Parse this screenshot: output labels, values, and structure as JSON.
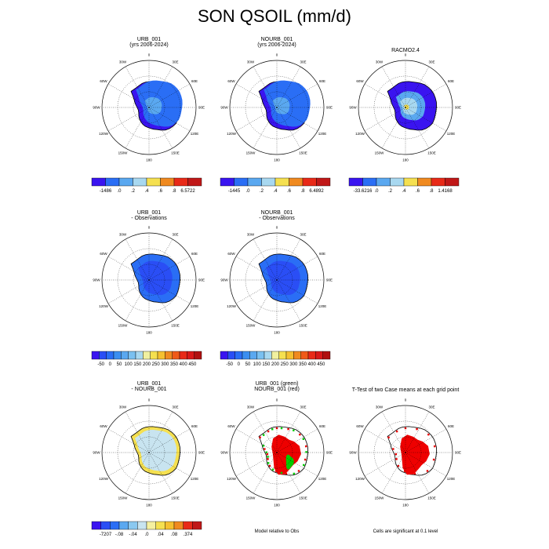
{
  "title": "SON QSOIL (mm/d)",
  "lon_labels": [
    "0",
    "30E",
    "60E",
    "90E",
    "120E",
    "150E",
    "180",
    "150W",
    "120W",
    "90W",
    "60W",
    "30W"
  ],
  "colors": {
    "ocean": "#ffffff",
    "coast": "#000000",
    "sig_urb": "#00cc00",
    "sig_nourb": "#ee0000",
    "scale_abs": [
      "#3a14f0",
      "#2a6ef5",
      "#5aa8f0",
      "#a8d8f0",
      "#f5e050",
      "#f08a20",
      "#e82a18",
      "#c01818"
    ],
    "scale_bias": [
      "#3a14f0",
      "#2a4ef5",
      "#2a6ef5",
      "#3a8ef0",
      "#5aa8f0",
      "#7ac0f0",
      "#a8d8f0",
      "#f0f0a0",
      "#f5e050",
      "#f5c030",
      "#f08a20",
      "#f05a18",
      "#e82a18",
      "#d81818",
      "#b01010"
    ],
    "scale_diff": [
      "#3a14f0",
      "#2a4ef5",
      "#2a6ef5",
      "#5aa8f0",
      "#8ac8f0",
      "#c8e4f0",
      "#f5f0a0",
      "#f5e050",
      "#f5c030",
      "#f08a20",
      "#e82a18",
      "#c01818"
    ]
  },
  "panels": [
    {
      "id": "urb-clim",
      "title_line1": "URB_001",
      "title_line2": "(yrs 2006-2024)",
      "fill": "abs_urb"
    },
    {
      "id": "nourb-clim",
      "title_line1": "NOURB_001",
      "title_line2": "(yrs 2006-2024)",
      "fill": "abs_nourb"
    },
    {
      "id": "obs-clim",
      "title_line1": "RACMO2.4",
      "title_line2": "",
      "fill": "abs_obs"
    },
    {
      "id": "urb-bias",
      "title_line1": "URB_001",
      "title_line2": "- Observations",
      "fill": "bias"
    },
    {
      "id": "nourb-bias",
      "title_line1": "NOURB_001",
      "title_line2": "- Observations",
      "fill": "bias"
    },
    {
      "id": "urb-nourb-diff",
      "title_line1": "URB_001",
      "title_line2": "- NOURB_001",
      "fill": "diff"
    },
    {
      "id": "model-vs-obs",
      "title_line1": "URB_001 (green)",
      "title_line2": "NOURB_001 (red)",
      "fill": "sig_both"
    },
    {
      "id": "ttest",
      "title_line1": "T-Test of two Case means at each grid point",
      "title_line2": "",
      "fill": "sig_single"
    }
  ],
  "colorbars": [
    {
      "id": "cb-urb",
      "labels": [
        "-1486",
        ".0",
        ".2",
        ".4",
        ".6",
        ".8",
        "6.5722"
      ],
      "scale": "scale_abs"
    },
    {
      "id": "cb-nourb",
      "labels": [
        "-1445",
        ".0",
        ".2",
        ".4",
        ".6",
        ".8",
        "6.4892"
      ],
      "scale": "scale_abs"
    },
    {
      "id": "cb-obs",
      "labels": [
        "-33.6216",
        ".0",
        ".2",
        ".4",
        ".6",
        ".8",
        "1.4168"
      ],
      "scale": "scale_abs"
    },
    {
      "id": "cb-urb-bias",
      "labels": [
        "-50",
        "0",
        "50",
        "100",
        "150",
        "200",
        "250",
        "300",
        "350",
        "400",
        "450"
      ],
      "scale": "scale_bias"
    },
    {
      "id": "cb-nourb-bias",
      "labels": [
        "-50",
        "0",
        "50",
        "100",
        "150",
        "200",
        "250",
        "300",
        "350",
        "400",
        "450"
      ],
      "scale": "scale_bias"
    },
    {
      "id": "cb-diff",
      "labels": [
        "-7207",
        "-.08",
        "-.04",
        ".0",
        ".04",
        ".08",
        ".374"
      ],
      "scale": "scale_diff"
    }
  ],
  "captions": {
    "model_vs_obs": "Model relative to Obs",
    "ttest": "Cells are significant at 0.1 level"
  },
  "chart_data": {
    "type": "heatmap",
    "title": "SON QSOIL (mm/d)",
    "projection": "south polar stereographic",
    "variable": "QSOIL",
    "units": "mm/d",
    "season": "SON",
    "cases": [
      "URB_001",
      "NOURB_001"
    ],
    "observations": "RACMO2.4",
    "years": "2006-2024",
    "color_levels_abs": [
      0.0,
      0.2,
      0.4,
      0.6,
      0.8
    ],
    "color_levels_bias": [
      -50,
      0,
      50,
      100,
      150,
      200,
      250,
      300,
      350,
      400,
      450
    ],
    "color_levels_diff": [
      -0.08,
      -0.04,
      0.0,
      0.04,
      0.08
    ],
    "ranges": {
      "URB_001": [
        -1486,
        6.5722
      ],
      "NOURB_001": [
        -1445,
        6.4892
      ],
      "RACMO2.4": [
        -33.6216,
        1.4168
      ],
      "URB_001 - NOURB_001": [
        -7207,
        0.374
      ]
    },
    "significance_level": 0.1
  }
}
